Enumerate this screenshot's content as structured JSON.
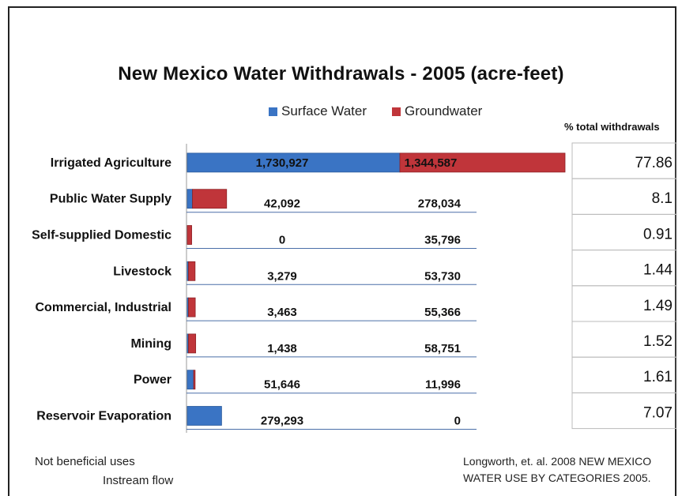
{
  "chart_data": {
    "type": "bar",
    "orientation": "horizontal",
    "stacked": true,
    "title": "New Mexico Water Withdrawals - 2005  (acre-feet)",
    "categories": [
      "Irrigated Agriculture",
      "Public Water Supply",
      "Self-supplied Domestic",
      "Livestock",
      "Commercial, Industrial",
      "Mining",
      "Power",
      "Reservoir Evaporation"
    ],
    "series": [
      {
        "name": "Surface Water",
        "color": "#3a74c4",
        "values": [
          1730927,
          42092,
          0,
          3279,
          3463,
          1438,
          51646,
          279293
        ],
        "labels": [
          "1,730,927",
          "42,092",
          "0",
          "3,279",
          "3,463",
          "1,438",
          "51,646",
          "279,293"
        ]
      },
      {
        "name": "Groundwater",
        "color": "#c0353a",
        "values": [
          1344587,
          278034,
          35796,
          53730,
          55366,
          58751,
          11996,
          0
        ],
        "labels": [
          "1,344,587",
          "278,034",
          "35,796",
          "53,730",
          "55,366",
          "58,751",
          "11,996",
          "0"
        ]
      }
    ],
    "percent_header": "% total withdrawals",
    "percent_total": [
      "77.86",
      "8.1",
      "0.91",
      "1.44",
      "1.49",
      "1.52",
      "1.61",
      "7.07"
    ],
    "xlim": [
      0,
      3075514
    ],
    "legend_position": "top-center"
  },
  "notes": {
    "not_beneficial": "Not beneficial uses",
    "instream": "Instream flow",
    "source_line1": "Longworth, et. al. 2008 NEW MEXICO",
    "source_line2": "WATER USE BY CATEGORIES 2005."
  }
}
